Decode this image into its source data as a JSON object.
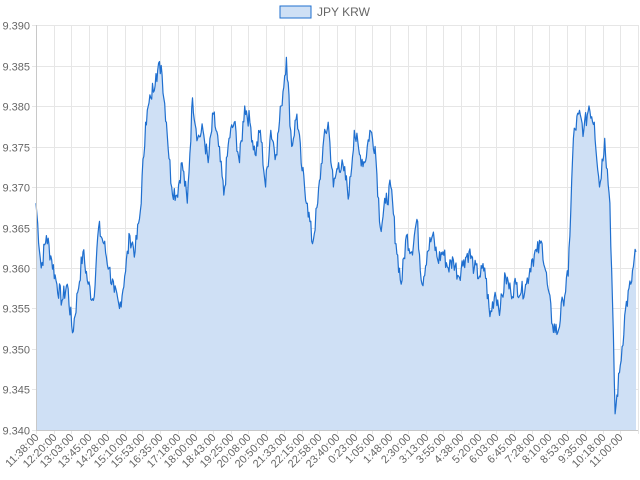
{
  "chart_data": {
    "type": "area",
    "legend": {
      "label": "JPY KRW",
      "position": "top-center"
    },
    "colors": {
      "line": "#1f6fcf",
      "fill": "#cfe0f5",
      "grid": "#e6e6e6"
    },
    "ylim": [
      9.34,
      9.39
    ],
    "y_ticks": [
      "9.390",
      "9.385",
      "9.380",
      "9.375",
      "9.370",
      "9.365",
      "9.360",
      "9.355",
      "9.350",
      "9.345",
      "9.340"
    ],
    "y_tick_values": [
      9.39,
      9.385,
      9.38,
      9.375,
      9.37,
      9.365,
      9.36,
      9.355,
      9.35,
      9.345,
      9.34
    ],
    "x_ticks": [
      "11:38:00",
      "12:20:00",
      "13:03:00",
      "13:45:00",
      "14:28:00",
      "15:10:00",
      "15:53:00",
      "16:35:00",
      "17:18:00",
      "18:00:00",
      "18:43:00",
      "19:25:00",
      "20:08:00",
      "20:50:00",
      "21:33:00",
      "22:15:00",
      "22:58:00",
      "23:40:00",
      "0:23:00",
      "1:05:00",
      "1:48:00",
      "2:30:00",
      "3:13:00",
      "3:55:00",
      "4:38:00",
      "5:20:00",
      "6:03:00",
      "6:45:00",
      "7:28:00",
      "8:10:00",
      "8:53:00",
      "9:35:00",
      "10:18:00",
      "11:00:00"
    ],
    "grid": true,
    "series": [
      {
        "name": "JPY KRW",
        "values": [
          9.368,
          9.36,
          9.364,
          9.361,
          9.358,
          9.356,
          9.358,
          9.352,
          9.357,
          9.362,
          9.358,
          9.356,
          9.365,
          9.363,
          9.36,
          9.357,
          9.355,
          9.359,
          9.364,
          9.362,
          9.367,
          9.378,
          9.381,
          9.384,
          9.385,
          9.378,
          9.37,
          9.369,
          9.373,
          9.368,
          9.381,
          9.376,
          9.377,
          9.373,
          9.379,
          9.375,
          9.369,
          9.376,
          9.378,
          9.373,
          9.38,
          9.378,
          9.374,
          9.377,
          9.37,
          9.377,
          9.374,
          9.38,
          9.386,
          9.375,
          9.379,
          9.372,
          9.368,
          9.363,
          9.368,
          9.375,
          9.378,
          9.37,
          9.373,
          9.372,
          9.369,
          9.377,
          9.374,
          9.373,
          9.377,
          9.375,
          9.365,
          9.368,
          9.37,
          9.363,
          9.358,
          9.364,
          9.362,
          9.366,
          9.358,
          9.362,
          9.364,
          9.361,
          9.362,
          9.36,
          9.361,
          9.359,
          9.361,
          9.362,
          9.36,
          9.359,
          9.36,
          9.354,
          9.357,
          9.355,
          9.359,
          9.357,
          9.358,
          9.357,
          9.358,
          9.361,
          9.362,
          9.363,
          9.358,
          9.353,
          9.352,
          9.356,
          9.359,
          9.376,
          9.379,
          9.377,
          9.38,
          9.378,
          9.37,
          9.376,
          9.368,
          9.342,
          9.348,
          9.355,
          9.358,
          9.362
        ]
      }
    ]
  }
}
